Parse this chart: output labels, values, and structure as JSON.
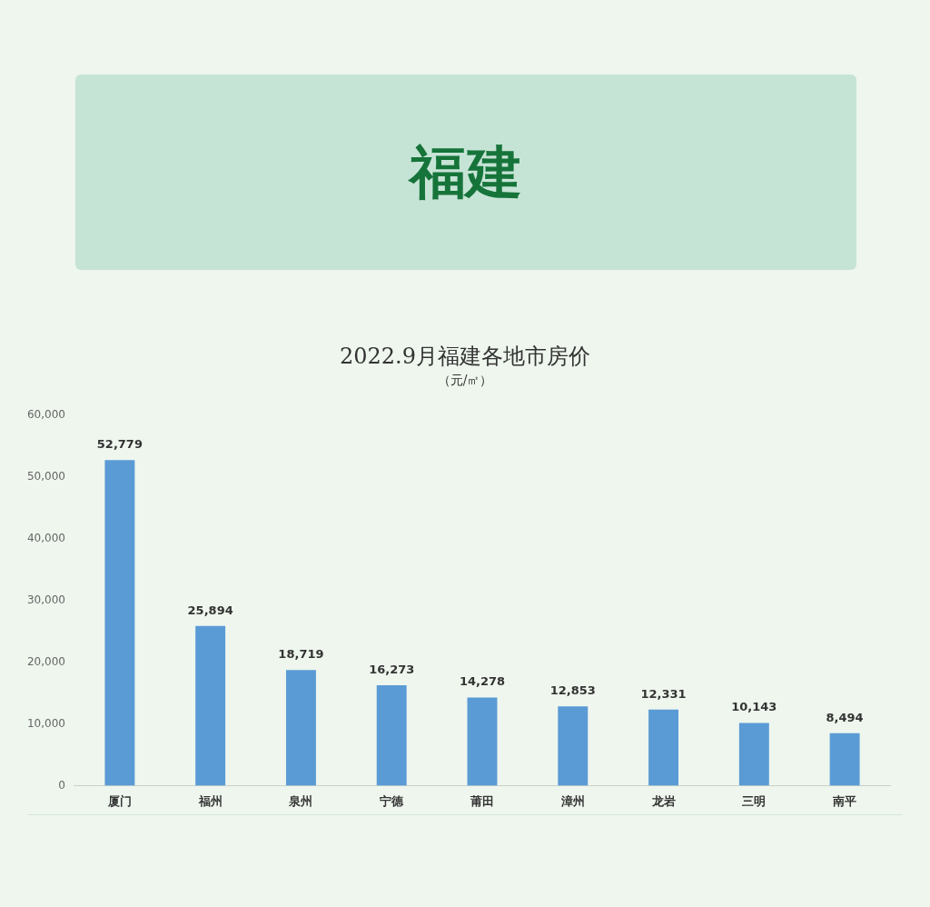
{
  "chart_data": {
    "type": "bar",
    "title": "2022.9月福建各地市房价",
    "subtitle": "（元/㎡）",
    "annotations": [
      "福建"
    ],
    "categories": [
      "厦门",
      "福州",
      "泉州",
      "宁德",
      "莆田",
      "漳州",
      "龙岩",
      "三明",
      "南平"
    ],
    "values": [
      52779,
      25894,
      18719,
      16273,
      14278,
      12853,
      12331,
      10143,
      8494
    ],
    "value_labels": [
      "52,779",
      "25,894",
      "18,719",
      "16,273",
      "14,278",
      "12,853",
      "12,331",
      "10,143",
      "8,494"
    ],
    "color": "#5b9bd5",
    "ylim": [
      0,
      60000
    ],
    "yticks": [
      0,
      {
        "value": 10000,
        "label": "10,000"
      },
      {
        "value": 20000,
        "label": "20,000"
      },
      {
        "value": 30000,
        "label": "30,000"
      },
      {
        "value": 40000,
        "label": "40,000"
      },
      {
        "value": 50000,
        "label": "50,000"
      },
      {
        "value": 60000,
        "label": "60,000"
      }
    ],
    "grid": false,
    "legend": false
  }
}
